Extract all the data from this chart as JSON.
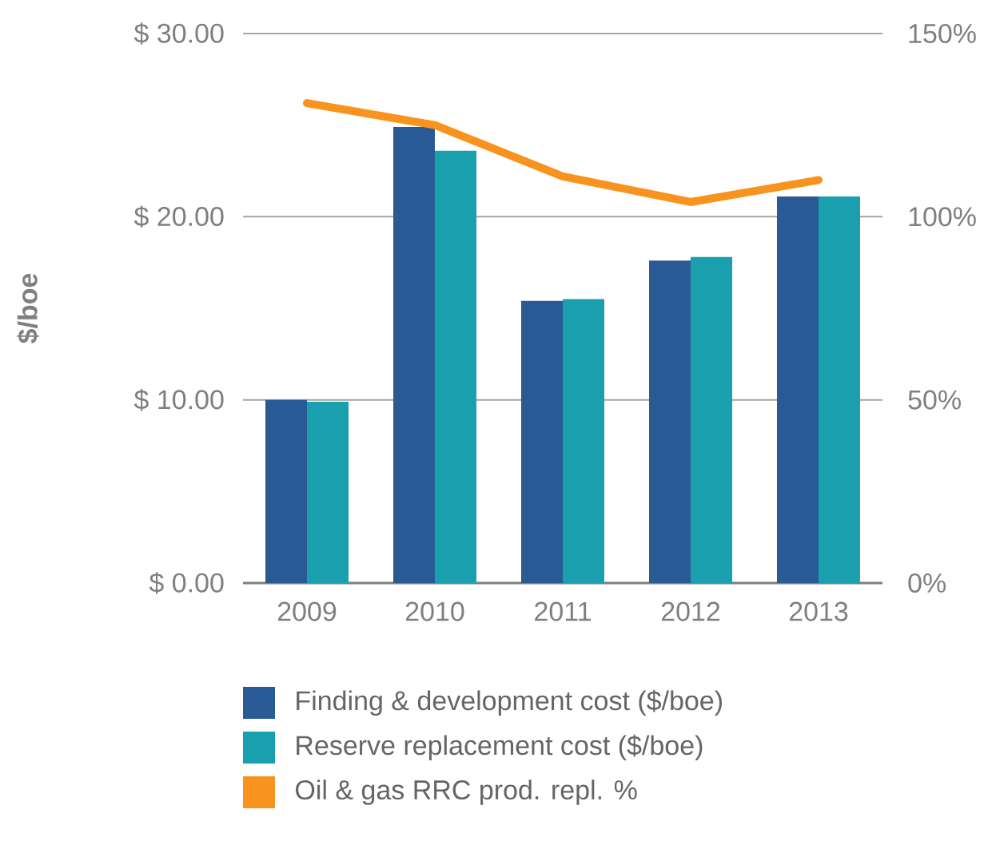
{
  "chart_data": {
    "type": "bar",
    "ylabel": "$/boe",
    "categories": [
      "2009",
      "2010",
      "2011",
      "2012",
      "2013"
    ],
    "series": [
      {
        "name": "Finding & development cost ($/boe)",
        "color": "#2a5a95",
        "values": [
          10.0,
          24.9,
          15.4,
          17.6,
          21.1
        ]
      },
      {
        "name": "Reserve replacement cost ($/boe)",
        "color": "#1a9fae",
        "values": [
          9.9,
          23.6,
          15.5,
          17.8,
          21.1
        ]
      },
      {
        "name": "Oil & gas RRC prod. repl. %",
        "color": "#f7931e",
        "type": "line",
        "axis": "y2",
        "values": [
          131,
          125,
          111,
          104,
          110
        ]
      }
    ],
    "ylim": [
      0,
      30
    ],
    "yticks": [
      {
        "value": 0,
        "label": "$ 0.00"
      },
      {
        "value": 10,
        "label": "$ 10.00"
      },
      {
        "value": 20,
        "label": "$ 20.00"
      },
      {
        "value": 30,
        "label": "$ 30.00"
      }
    ],
    "y2lim": [
      0,
      150
    ],
    "y2ticks": [
      {
        "value": 0,
        "label": "0%"
      },
      {
        "value": 50,
        "label": "50%"
      },
      {
        "value": 100,
        "label": "100%"
      },
      {
        "value": 150,
        "label": "150%"
      }
    ],
    "grid": "y",
    "legend": "bottom",
    "marker": "none"
  }
}
